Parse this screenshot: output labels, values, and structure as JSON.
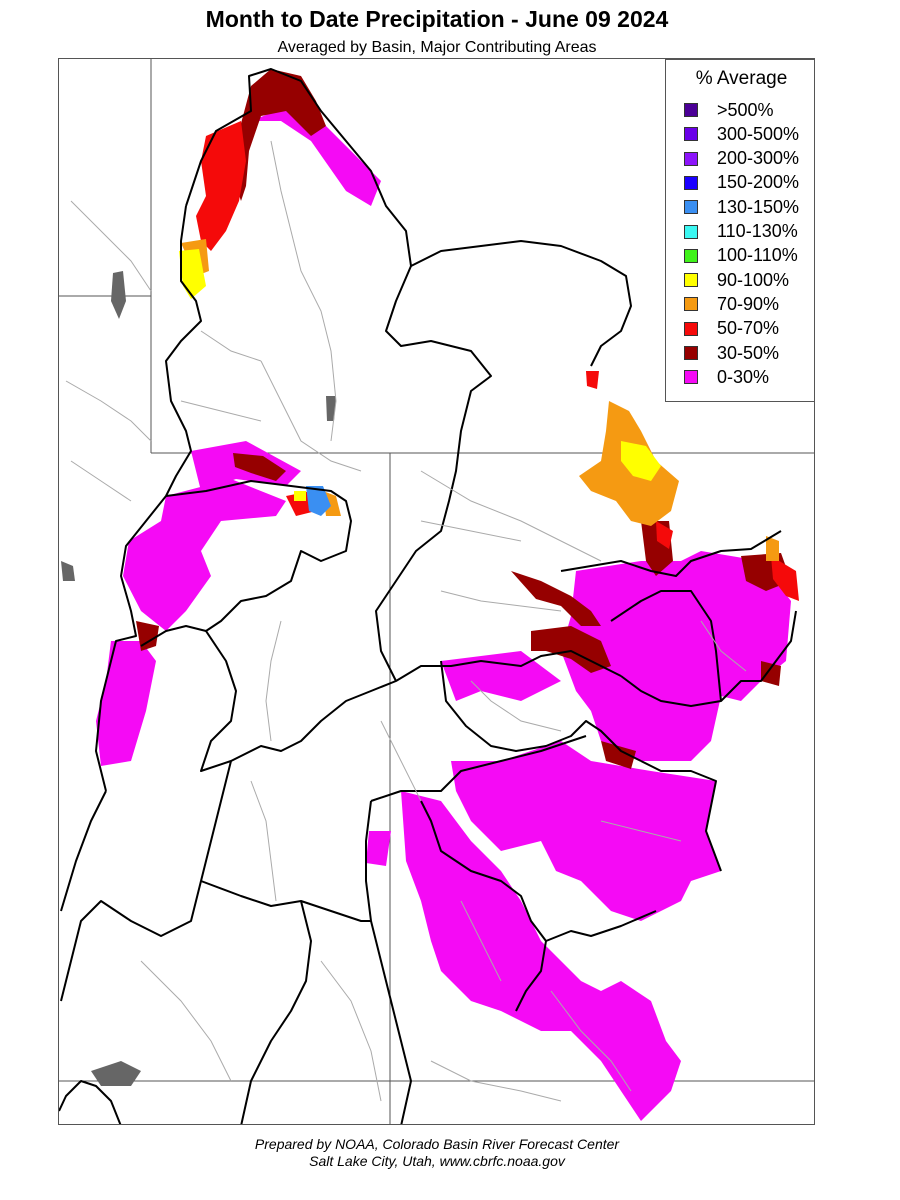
{
  "map": {
    "title": "Month to Date Precipitation - June 09 2024",
    "subtitle": "Averaged by Basin, Major Contributing Areas",
    "region": "Colorado Basin River Forecast Center area"
  },
  "legend": {
    "title": "% Average",
    "items": [
      {
        "label": ">500%",
        "color": "#4B0096"
      },
      {
        "label": "300-500%",
        "color": "#6A00E8"
      },
      {
        "label": "200-300%",
        "color": "#8C14FA"
      },
      {
        "label": "150-200%",
        "color": "#1A00FF"
      },
      {
        "label": "130-150%",
        "color": "#3A8FF2"
      },
      {
        "label": "110-130%",
        "color": "#3CF7F2"
      },
      {
        "label": "100-110%",
        "color": "#3FF21A"
      },
      {
        "label": "90-100%",
        "color": "#FFFF00"
      },
      {
        "label": "70-90%",
        "color": "#F59A12"
      },
      {
        "label": "50-70%",
        "color": "#F50A0A"
      },
      {
        "label": "30-50%",
        "color": "#960000"
      },
      {
        "label": "0-30%",
        "color": "#F50AF5"
      }
    ]
  },
  "footer": {
    "line1": "Prepared by NOAA, Colorado Basin River Forecast Center",
    "line2": "Salt Lake City, Utah, www.cbrfc.noaa.gov"
  }
}
